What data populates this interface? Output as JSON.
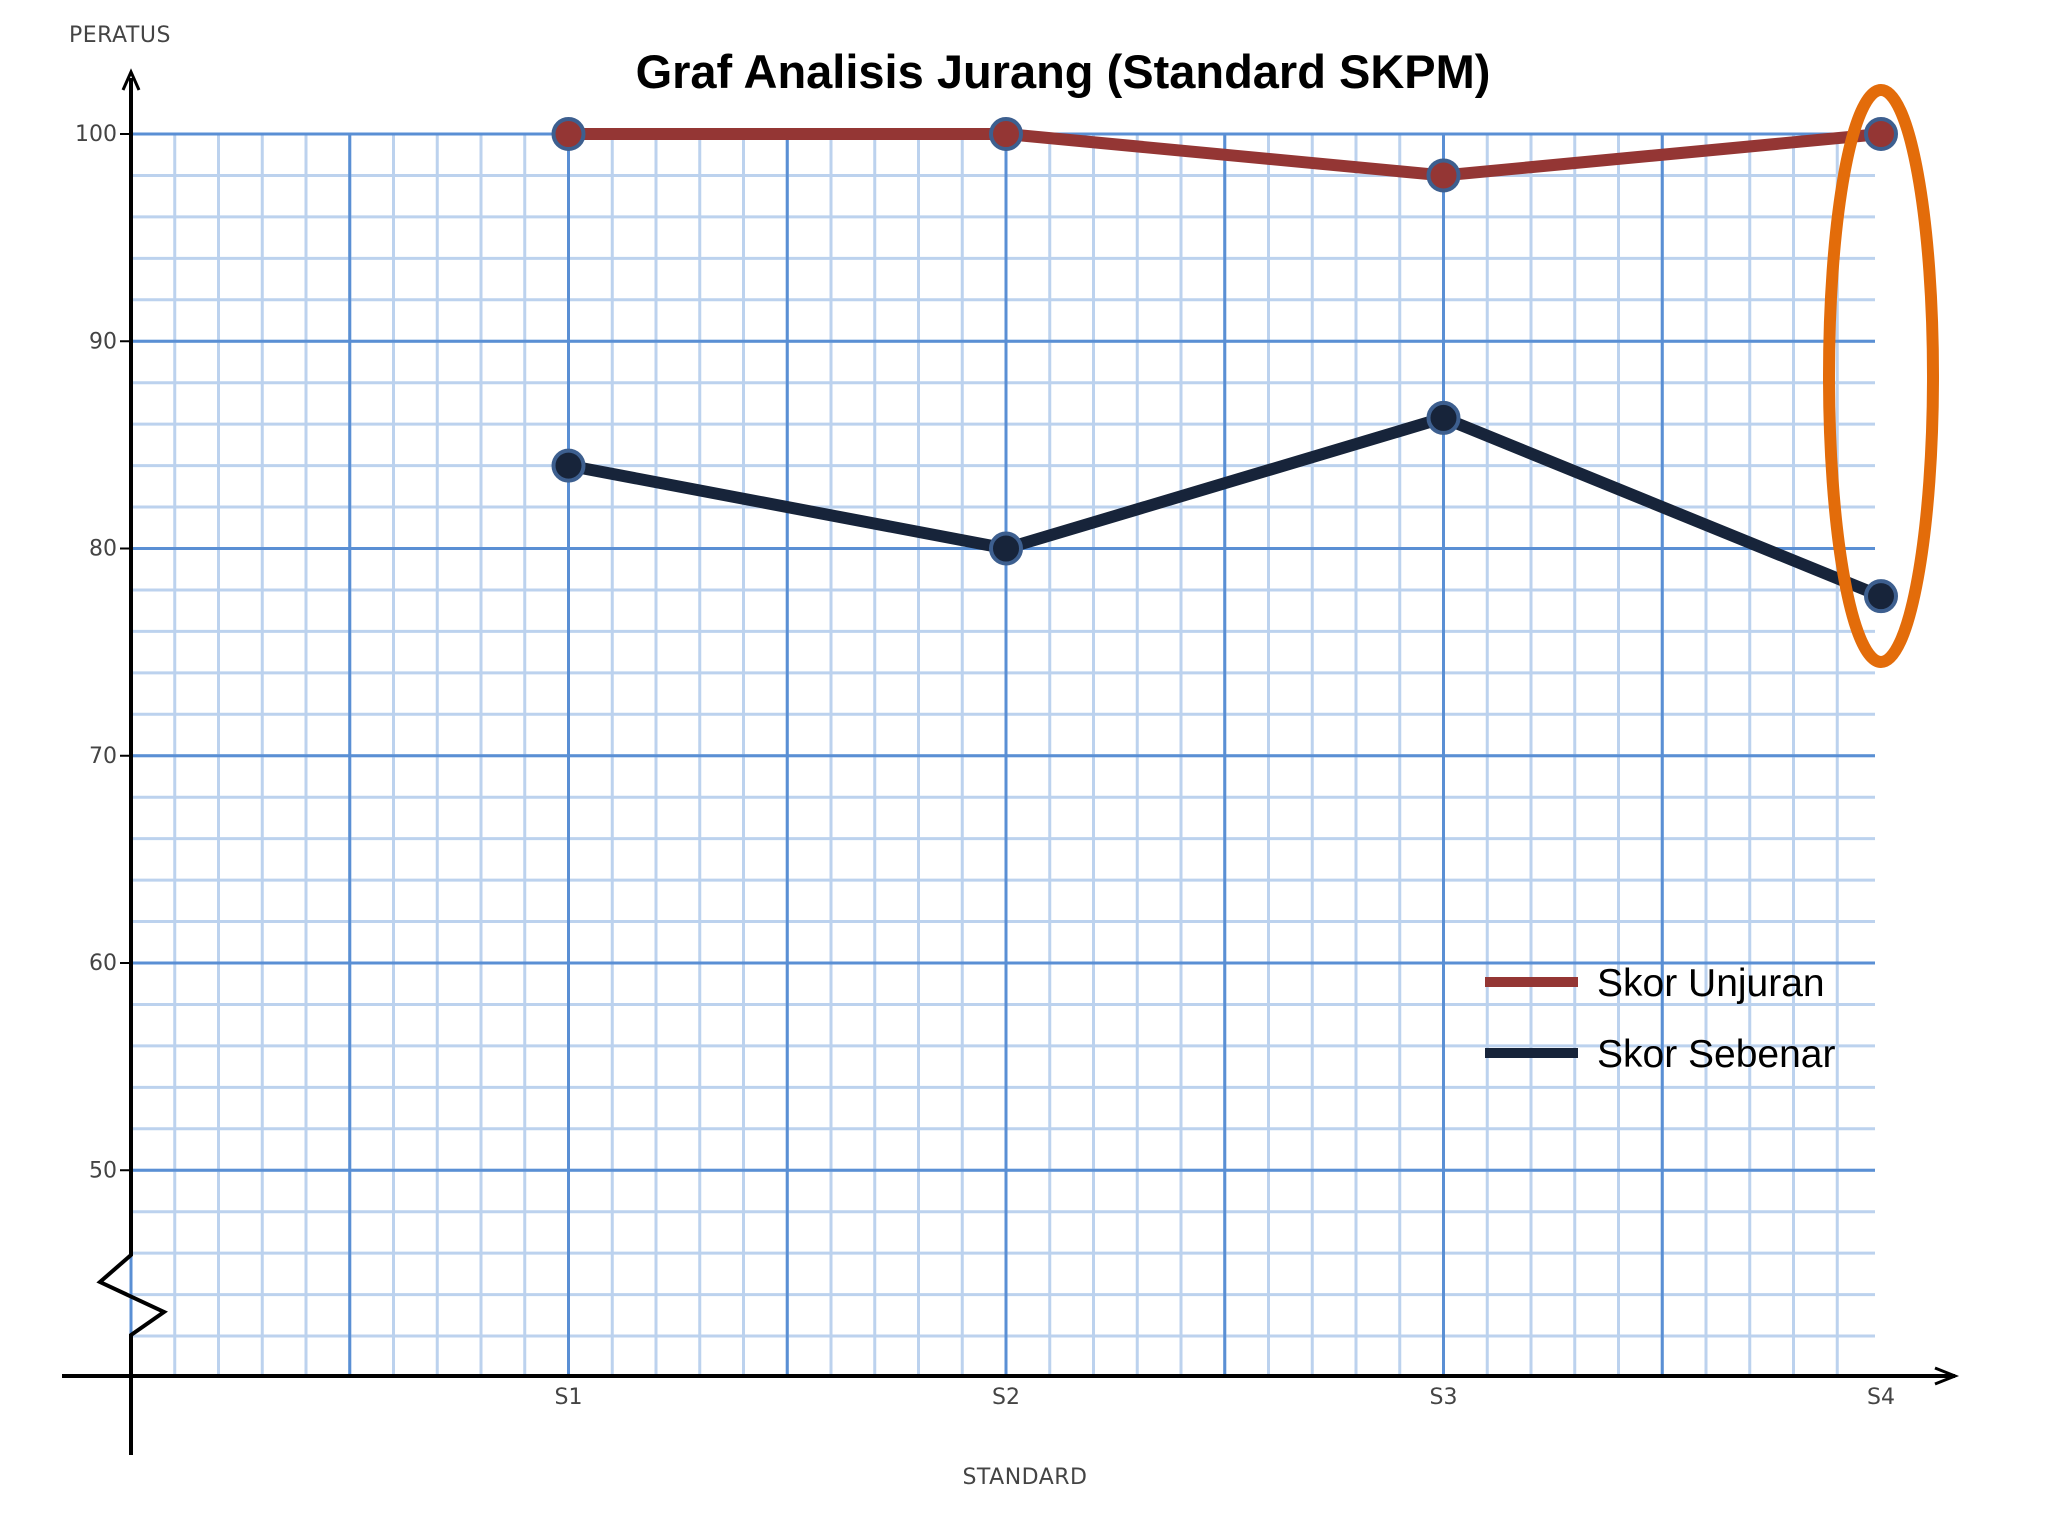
{
  "chart_data": {
    "type": "line",
    "title": "Graf Analisis Jurang (Standard SKPM)",
    "xlabel": "STANDARD",
    "ylabel": "PERATUS",
    "categories": [
      "S1",
      "S2",
      "S3",
      "S4"
    ],
    "ylim": [
      40,
      100
    ],
    "yticks": [
      "100",
      "90",
      "80",
      "70",
      "60",
      "50"
    ],
    "axis_break": "y-axis-below-50",
    "grid": true,
    "legend_position": "bottom-right",
    "highlight": "S4",
    "series": [
      {
        "name": "Skor Unjuran",
        "color": "#943634",
        "values": [
          100,
          100,
          98,
          100
        ]
      },
      {
        "name": "Skor Sebenar",
        "color": "#17243a",
        "values": [
          84,
          80,
          86.3,
          77.7
        ]
      }
    ],
    "colors": {
      "grid_major": "#5a8fd4",
      "grid_minor": "#bcd2ee",
      "highlight_ellipse": "#e36c0a",
      "marker_outline": "#3d5f8f"
    }
  }
}
